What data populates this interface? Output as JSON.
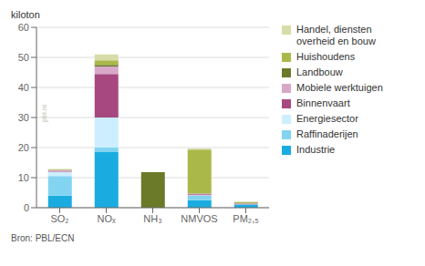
{
  "chart_data": {
    "type": "bar",
    "stacked": true,
    "y_label": "kiloton",
    "categories": [
      "SO₂",
      "NOₓ",
      "NH₃",
      "NMVOS",
      "PM₂,₅"
    ],
    "series": [
      {
        "name": "Industrie",
        "color": "#1aace0",
        "values": [
          4.0,
          18.5,
          0.0,
          2.5,
          1.0
        ]
      },
      {
        "name": "Raffinaderijen",
        "color": "#82d4f0",
        "values": [
          6.5,
          1.5,
          0.0,
          1.5,
          0.1
        ]
      },
      {
        "name": "Energiesector",
        "color": "#cceeff",
        "values": [
          1.5,
          10.0,
          0.0,
          0.2,
          0.05
        ]
      },
      {
        "name": "Binnenvaart",
        "color": "#a84880",
        "values": [
          0.2,
          14.5,
          0.0,
          0.3,
          0.1
        ]
      },
      {
        "name": "Mobiele werktuigen",
        "color": "#d8a8c8",
        "values": [
          0.3,
          2.5,
          0.0,
          0.2,
          0.2
        ]
      },
      {
        "name": "Landbouw",
        "color": "#6a7a28",
        "values": [
          0.1,
          0.5,
          11.8,
          0.1,
          0.2
        ]
      },
      {
        "name": "Huishoudens",
        "color": "#aab84a",
        "values": [
          0.1,
          1.5,
          0.0,
          14.5,
          0.15
        ]
      },
      {
        "name": "Handel, diensten\noverheid en bouw",
        "color": "#d8dca8",
        "values": [
          0.2,
          2.0,
          0.0,
          0.4,
          0.25
        ]
      }
    ],
    "ylim": [
      0,
      60
    ],
    "yticks": [
      0,
      10,
      20,
      30,
      40,
      50,
      60
    ],
    "grid": true,
    "legend": "right",
    "annotations": [
      "pbl.nl",
      "Bron: PBL/ECN"
    ]
  }
}
